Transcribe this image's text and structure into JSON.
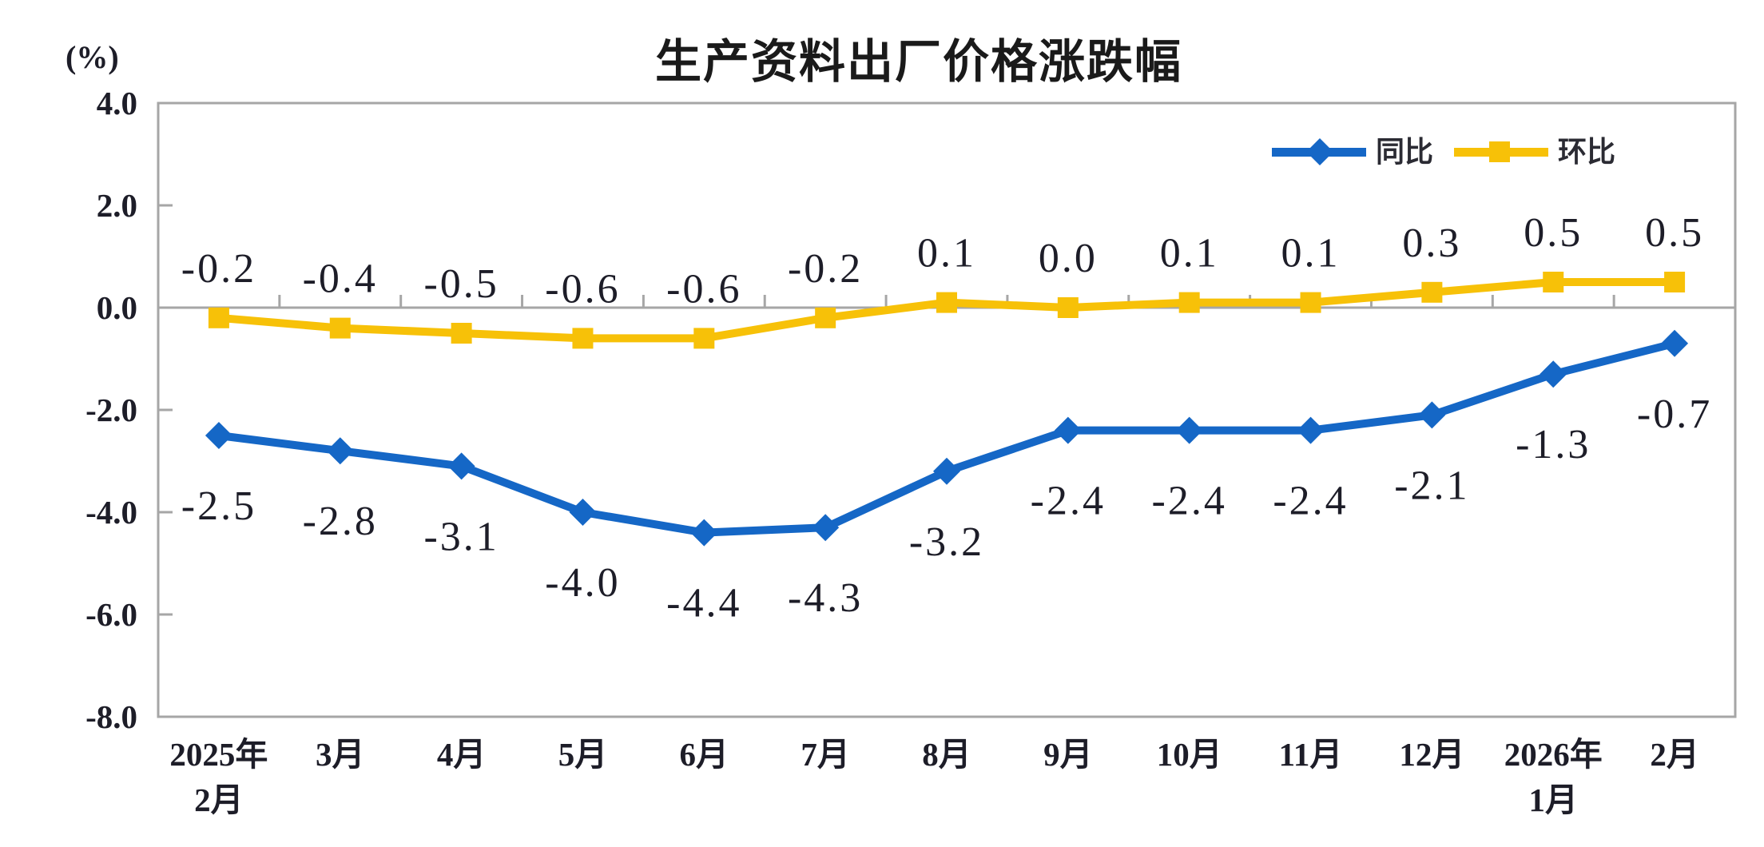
{
  "chart_data": {
    "type": "line",
    "title": "生产资料出厂价格涨跌幅",
    "unit_label": "(%)",
    "categories": [
      "2025年\n2月",
      "3月",
      "4月",
      "5月",
      "6月",
      "7月",
      "8月",
      "9月",
      "10月",
      "11月",
      "12月",
      "2026年\n1月",
      "2月"
    ],
    "series": [
      {
        "name": "同比",
        "color": "#1567C6",
        "marker": "diamond",
        "label_position": "below",
        "values": [
          -2.5,
          -2.8,
          -3.1,
          -4.0,
          -4.4,
          -4.3,
          -3.2,
          -2.4,
          -2.4,
          -2.4,
          -2.1,
          -1.3,
          -0.7
        ]
      },
      {
        "name": "环比",
        "color": "#F7C108",
        "marker": "square",
        "label_position": "above",
        "values": [
          -0.2,
          -0.4,
          -0.5,
          -0.6,
          -0.6,
          -0.2,
          0.1,
          0.0,
          0.1,
          0.1,
          0.3,
          0.5,
          0.5
        ]
      }
    ],
    "ylim": [
      -8.0,
      4.0
    ],
    "yticks": [
      4.0,
      2.0,
      0.0,
      -2.0,
      -4.0,
      -6.0,
      -8.0
    ],
    "grid": false,
    "legend_position": "top-right",
    "axis_color": "#A6A6A6",
    "text_color": "#1D1D28"
  }
}
